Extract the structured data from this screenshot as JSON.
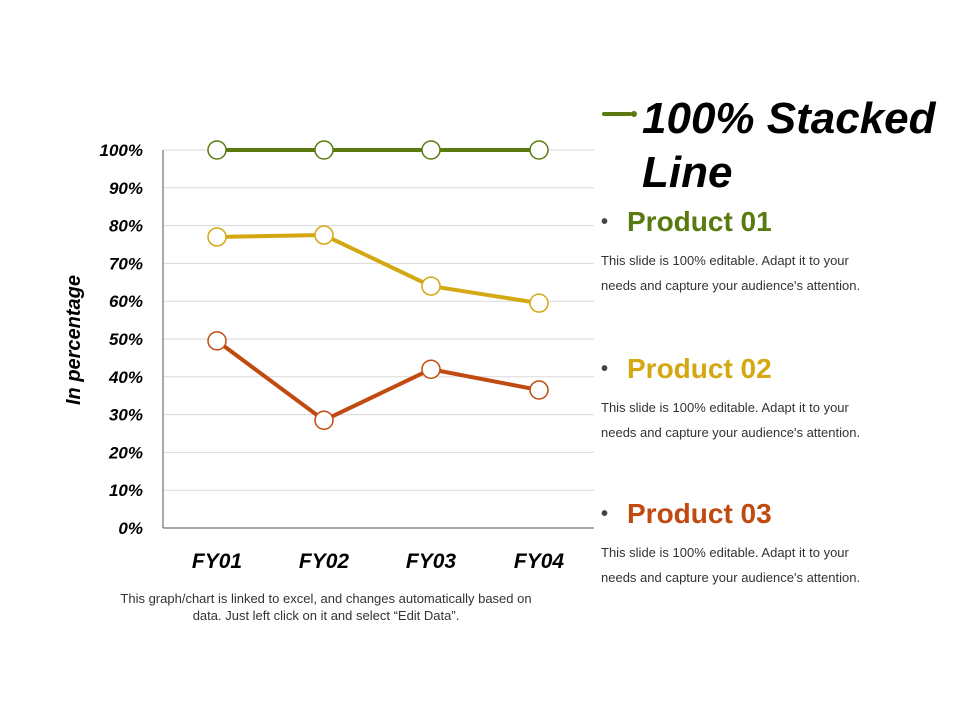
{
  "chart_data": {
    "type": "line",
    "title": "100% Stacked Line",
    "ylabel": "In percentage",
    "xlabel": "",
    "categories": [
      "FY01",
      "FY02",
      "FY03",
      "FY04"
    ],
    "yticks": [
      "0%",
      "10%",
      "20%",
      "30%",
      "40%",
      "50%",
      "60%",
      "70%",
      "80%",
      "90%",
      "100%"
    ],
    "ylim": [
      0,
      100
    ],
    "grid": true,
    "series": [
      {
        "name": "Product 01",
        "color": "#5a7a10",
        "values": [
          100,
          100,
          100,
          100
        ]
      },
      {
        "name": "Product 02",
        "color": "#d4a812",
        "values": [
          77,
          77.5,
          64,
          59.5
        ]
      },
      {
        "name": "Product 03",
        "color": "#c04a10",
        "values": [
          49.5,
          28.5,
          42,
          36.5
        ]
      }
    ]
  },
  "note": "This graph/chart is linked to excel, and changes automatically based on data. Just left click on it and select “Edit Data”.",
  "products": [
    {
      "name": "Product 01",
      "color": "#5a7a10",
      "desc": "This slide is 100% editable. Adapt it to your needs and capture your audience's attention."
    },
    {
      "name": "Product 02",
      "color": "#d4a812",
      "desc": "This slide is 100% editable. Adapt it to your needs and capture your audience's attention."
    },
    {
      "name": "Product 03",
      "color": "#c04a10",
      "desc": "This slide is 100% editable. Adapt it to your needs and capture your audience's attention."
    }
  ]
}
